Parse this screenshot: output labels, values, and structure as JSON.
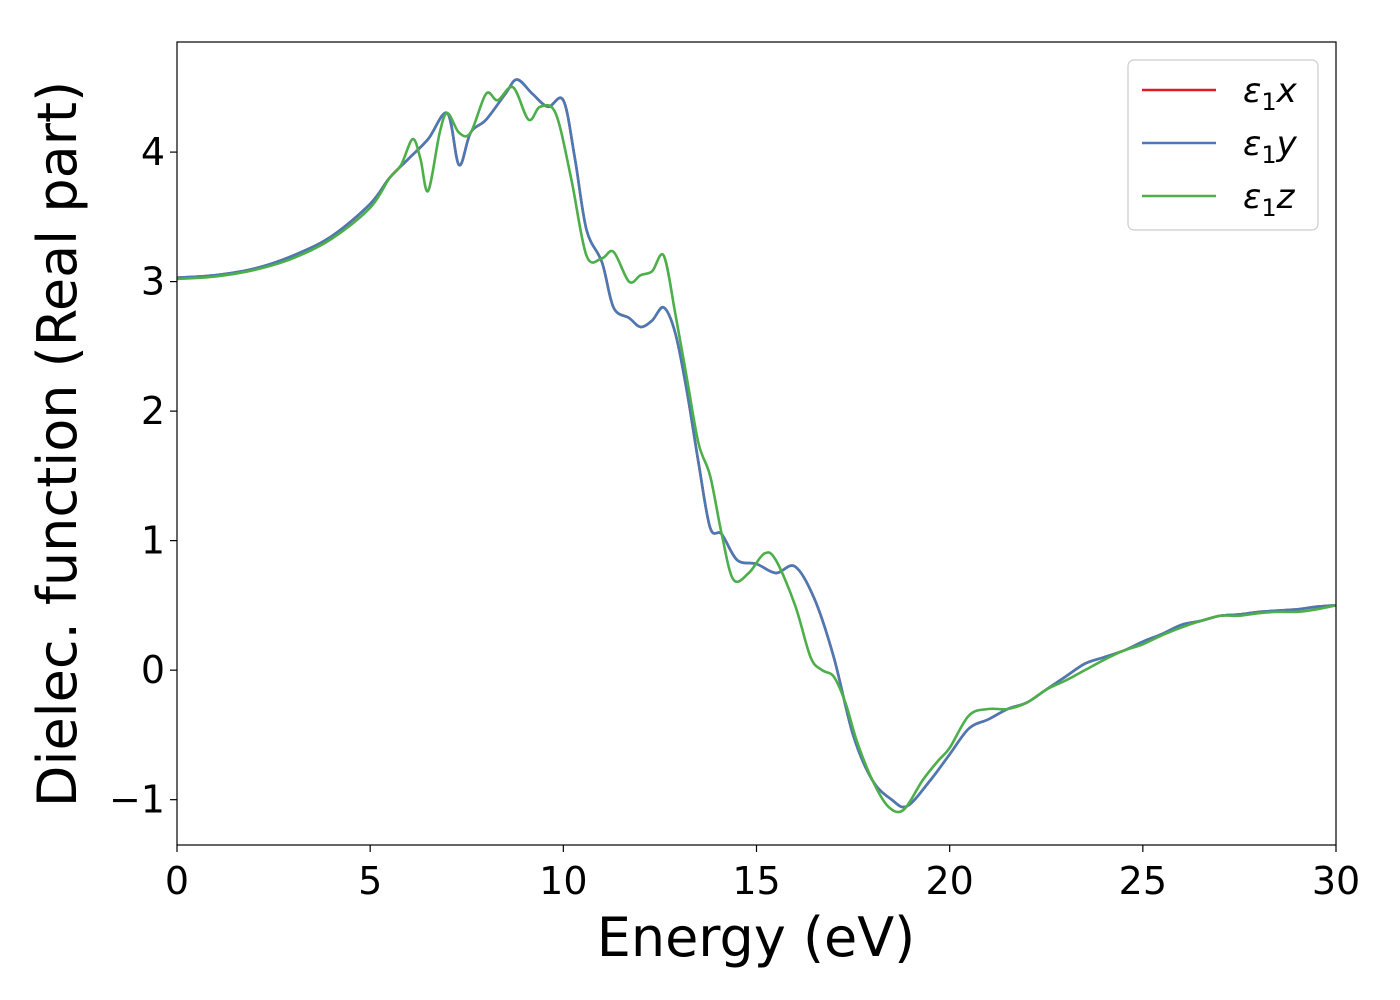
{
  "chart_data": {
    "type": "line",
    "xlabel": "Energy (eV)",
    "ylabel": "Dielec. function (Real part)",
    "xlim": [
      0,
      30
    ],
    "ylim": [
      -1.35,
      4.85
    ],
    "xticks": [
      0,
      5,
      10,
      15,
      20,
      25,
      30
    ],
    "xtick_labels": [
      "0",
      "5",
      "10",
      "15",
      "20",
      "25",
      "30"
    ],
    "yticks": [
      -1,
      0,
      1,
      2,
      3,
      4
    ],
    "ytick_labels": [
      "−1",
      "0",
      "1",
      "2",
      "3",
      "4"
    ],
    "grid": false,
    "legend_position": "top-right",
    "series": [
      {
        "name": "ε1x",
        "symbol": "ε",
        "subscript": "1",
        "suffix": "x",
        "color": "#e41a1c",
        "points": [
          [
            0,
            3.03
          ],
          [
            1,
            3.05
          ],
          [
            2,
            3.1
          ],
          [
            3,
            3.2
          ],
          [
            4,
            3.35
          ],
          [
            5,
            3.6
          ],
          [
            5.5,
            3.8
          ],
          [
            6,
            3.95
          ],
          [
            6.5,
            4.1
          ],
          [
            7,
            4.3
          ],
          [
            7.3,
            3.9
          ],
          [
            7.6,
            4.15
          ],
          [
            8,
            4.25
          ],
          [
            8.5,
            4.45
          ],
          [
            8.8,
            4.56
          ],
          [
            9.2,
            4.45
          ],
          [
            9.6,
            4.35
          ],
          [
            10,
            4.4
          ],
          [
            10.3,
            3.95
          ],
          [
            10.6,
            3.4
          ],
          [
            11,
            3.15
          ],
          [
            11.3,
            2.8
          ],
          [
            11.7,
            2.72
          ],
          [
            12,
            2.65
          ],
          [
            12.3,
            2.7
          ],
          [
            12.6,
            2.8
          ],
          [
            12.9,
            2.6
          ],
          [
            13.2,
            2.15
          ],
          [
            13.5,
            1.6
          ],
          [
            13.8,
            1.1
          ],
          [
            14.1,
            1.05
          ],
          [
            14.5,
            0.85
          ],
          [
            15,
            0.82
          ],
          [
            15.5,
            0.75
          ],
          [
            16,
            0.8
          ],
          [
            16.5,
            0.55
          ],
          [
            17,
            0.1
          ],
          [
            17.5,
            -0.5
          ],
          [
            18,
            -0.85
          ],
          [
            18.5,
            -1.0
          ],
          [
            18.9,
            -1.05
          ],
          [
            19.5,
            -0.85
          ],
          [
            20,
            -0.65
          ],
          [
            20.5,
            -0.45
          ],
          [
            21,
            -0.38
          ],
          [
            21.5,
            -0.3
          ],
          [
            22,
            -0.25
          ],
          [
            22.5,
            -0.15
          ],
          [
            23,
            -0.05
          ],
          [
            23.5,
            0.05
          ],
          [
            24,
            0.1
          ],
          [
            24.5,
            0.15
          ],
          [
            25,
            0.22
          ],
          [
            25.5,
            0.28
          ],
          [
            26,
            0.35
          ],
          [
            26.5,
            0.38
          ],
          [
            27,
            0.42
          ],
          [
            27.5,
            0.43
          ],
          [
            28,
            0.45
          ],
          [
            28.5,
            0.46
          ],
          [
            29,
            0.47
          ],
          [
            29.5,
            0.49
          ],
          [
            30,
            0.5
          ]
        ]
      },
      {
        "name": "ε1y",
        "symbol": "ε",
        "subscript": "1",
        "suffix": "y",
        "color": "#4a7ab5",
        "points": [
          [
            0,
            3.03
          ],
          [
            1,
            3.05
          ],
          [
            2,
            3.1
          ],
          [
            3,
            3.2
          ],
          [
            4,
            3.35
          ],
          [
            5,
            3.6
          ],
          [
            5.5,
            3.8
          ],
          [
            6,
            3.95
          ],
          [
            6.5,
            4.1
          ],
          [
            7,
            4.3
          ],
          [
            7.3,
            3.9
          ],
          [
            7.6,
            4.15
          ],
          [
            8,
            4.25
          ],
          [
            8.5,
            4.45
          ],
          [
            8.8,
            4.56
          ],
          [
            9.2,
            4.45
          ],
          [
            9.6,
            4.35
          ],
          [
            10,
            4.4
          ],
          [
            10.3,
            3.95
          ],
          [
            10.6,
            3.4
          ],
          [
            11,
            3.15
          ],
          [
            11.3,
            2.8
          ],
          [
            11.7,
            2.72
          ],
          [
            12,
            2.65
          ],
          [
            12.3,
            2.7
          ],
          [
            12.6,
            2.8
          ],
          [
            12.9,
            2.6
          ],
          [
            13.2,
            2.15
          ],
          [
            13.5,
            1.6
          ],
          [
            13.8,
            1.1
          ],
          [
            14.1,
            1.05
          ],
          [
            14.5,
            0.85
          ],
          [
            15,
            0.82
          ],
          [
            15.5,
            0.75
          ],
          [
            16,
            0.8
          ],
          [
            16.5,
            0.55
          ],
          [
            17,
            0.1
          ],
          [
            17.5,
            -0.5
          ],
          [
            18,
            -0.85
          ],
          [
            18.5,
            -1.0
          ],
          [
            18.9,
            -1.05
          ],
          [
            19.5,
            -0.85
          ],
          [
            20,
            -0.65
          ],
          [
            20.5,
            -0.45
          ],
          [
            21,
            -0.38
          ],
          [
            21.5,
            -0.3
          ],
          [
            22,
            -0.25
          ],
          [
            22.5,
            -0.15
          ],
          [
            23,
            -0.05
          ],
          [
            23.5,
            0.05
          ],
          [
            24,
            0.1
          ],
          [
            24.5,
            0.15
          ],
          [
            25,
            0.22
          ],
          [
            25.5,
            0.28
          ],
          [
            26,
            0.35
          ],
          [
            26.5,
            0.38
          ],
          [
            27,
            0.42
          ],
          [
            27.5,
            0.43
          ],
          [
            28,
            0.45
          ],
          [
            28.5,
            0.46
          ],
          [
            29,
            0.47
          ],
          [
            29.5,
            0.49
          ],
          [
            30,
            0.5
          ]
        ]
      },
      {
        "name": "ε1z",
        "symbol": "ε",
        "subscript": "1",
        "suffix": "z",
        "color": "#4daf4a",
        "points": [
          [
            0,
            3.02
          ],
          [
            1,
            3.04
          ],
          [
            2,
            3.09
          ],
          [
            3,
            3.18
          ],
          [
            4,
            3.33
          ],
          [
            5,
            3.57
          ],
          [
            5.5,
            3.8
          ],
          [
            5.8,
            3.9
          ],
          [
            6.1,
            4.1
          ],
          [
            6.3,
            3.95
          ],
          [
            6.5,
            3.7
          ],
          [
            6.8,
            4.15
          ],
          [
            7,
            4.3
          ],
          [
            7.3,
            4.15
          ],
          [
            7.6,
            4.15
          ],
          [
            8,
            4.45
          ],
          [
            8.3,
            4.4
          ],
          [
            8.7,
            4.5
          ],
          [
            9.1,
            4.25
          ],
          [
            9.4,
            4.35
          ],
          [
            9.8,
            4.3
          ],
          [
            10.2,
            3.8
          ],
          [
            10.6,
            3.2
          ],
          [
            11,
            3.18
          ],
          [
            11.3,
            3.23
          ],
          [
            11.7,
            3.0
          ],
          [
            12,
            3.05
          ],
          [
            12.3,
            3.08
          ],
          [
            12.6,
            3.2
          ],
          [
            12.9,
            2.75
          ],
          [
            13.2,
            2.25
          ],
          [
            13.5,
            1.75
          ],
          [
            13.8,
            1.5
          ],
          [
            14.1,
            1.05
          ],
          [
            14.4,
            0.7
          ],
          [
            14.8,
            0.75
          ],
          [
            15.2,
            0.9
          ],
          [
            15.5,
            0.85
          ],
          [
            16,
            0.5
          ],
          [
            16.4,
            0.1
          ],
          [
            16.7,
            0.0
          ],
          [
            17,
            -0.05
          ],
          [
            17.3,
            -0.25
          ],
          [
            17.6,
            -0.55
          ],
          [
            18,
            -0.85
          ],
          [
            18.4,
            -1.05
          ],
          [
            18.8,
            -1.08
          ],
          [
            19.3,
            -0.85
          ],
          [
            19.7,
            -0.7
          ],
          [
            20,
            -0.6
          ],
          [
            20.5,
            -0.35
          ],
          [
            21,
            -0.3
          ],
          [
            21.5,
            -0.3
          ],
          [
            22,
            -0.25
          ],
          [
            22.5,
            -0.15
          ],
          [
            23,
            -0.08
          ],
          [
            23.5,
            0.0
          ],
          [
            24,
            0.08
          ],
          [
            24.5,
            0.15
          ],
          [
            25,
            0.2
          ],
          [
            25.5,
            0.27
          ],
          [
            26,
            0.33
          ],
          [
            26.5,
            0.38
          ],
          [
            27,
            0.42
          ],
          [
            27.5,
            0.42
          ],
          [
            28,
            0.44
          ],
          [
            28.5,
            0.45
          ],
          [
            29,
            0.45
          ],
          [
            29.5,
            0.47
          ],
          [
            30,
            0.5
          ]
        ]
      }
    ]
  }
}
